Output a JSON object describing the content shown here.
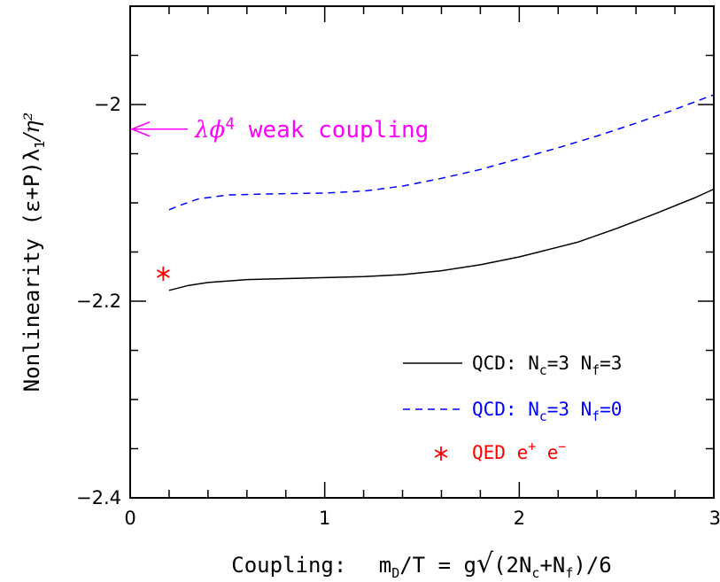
{
  "chart_data": {
    "type": "line",
    "xlabel": {
      "prefix": "Coupling:",
      "lhs_m": "m",
      "lhs_sub": "D",
      "lhs_rest": "/T = g",
      "sqrt_sign": "√",
      "args": [
        "(2N",
        "c",
        "+N",
        "f",
        ")/6"
      ]
    },
    "ylabel": {
      "prefix": "Nonlinearity (ε+P)λ",
      "sub": "1",
      "suffix": "/η²"
    },
    "xlim": [
      0,
      3
    ],
    "ylim": [
      -2.4,
      -1.9
    ],
    "x_ticks": [
      {
        "value": 0,
        "label": "0"
      },
      {
        "value": 1,
        "label": "1"
      },
      {
        "value": 2,
        "label": "2"
      },
      {
        "value": 3,
        "label": "3"
      }
    ],
    "y_ticks": [
      {
        "value": -2.4,
        "label": "−2.4"
      },
      {
        "value": -2.2,
        "label": "−2.2"
      },
      {
        "value": -2.0,
        "label": "−2"
      }
    ],
    "grid": false,
    "legend_position": "bottom-right",
    "series": [
      {
        "name": "QCD: N_c=3 N_f=3",
        "style": "solid",
        "color": "#000000",
        "x": [
          0.2,
          0.3,
          0.4,
          0.6,
          0.8,
          1.0,
          1.2,
          1.4,
          1.6,
          1.8,
          2.0,
          2.1,
          2.3,
          2.5,
          2.7,
          2.9,
          3.0
        ],
        "y": [
          -2.189,
          -2.184,
          -2.181,
          -2.178,
          -2.177,
          -2.176,
          -2.175,
          -2.173,
          -2.169,
          -2.163,
          -2.155,
          -2.15,
          -2.14,
          -2.126,
          -2.111,
          -2.095,
          -2.086
        ]
      },
      {
        "name": "QCD: N_c=3 N_f=0",
        "style": "dashed",
        "color": "#0000ff",
        "x": [
          0.2,
          0.25,
          0.35,
          0.5,
          0.7,
          1.0,
          1.2,
          1.4,
          1.6,
          1.8,
          2.0,
          2.2,
          2.4,
          2.6,
          2.8,
          3.0
        ],
        "y": [
          -2.107,
          -2.103,
          -2.096,
          -2.092,
          -2.091,
          -2.09,
          -2.088,
          -2.083,
          -2.075,
          -2.066,
          -2.055,
          -2.044,
          -2.032,
          -2.019,
          -2.005,
          -1.99
        ]
      },
      {
        "name": "QED e⁺ e⁻",
        "style": "marker",
        "marker": "asterisk",
        "color": "#ff0000",
        "x": [
          0.17
        ],
        "y": [
          -2.172
        ]
      }
    ],
    "legend_entries": [
      {
        "style": "solid",
        "color": "#000000",
        "parts": [
          {
            "t": "QCD: N"
          },
          {
            "t": "c",
            "sub": true
          },
          {
            "t": "=3 N"
          },
          {
            "t": "f",
            "sub": true
          },
          {
            "t": "=3"
          }
        ]
      },
      {
        "style": "dashed",
        "color": "#0000ff",
        "parts": [
          {
            "t": "QCD: N"
          },
          {
            "t": "c",
            "sub": true
          },
          {
            "t": "=3 N"
          },
          {
            "t": "f",
            "sub": true
          },
          {
            "t": "=0"
          }
        ]
      },
      {
        "style": "marker",
        "color": "#ff0000",
        "parts": [
          {
            "t": "QED e"
          },
          {
            "t": "+",
            "sup": true
          },
          {
            "t": " e"
          },
          {
            "t": "−",
            "sup": true
          }
        ]
      }
    ],
    "annotations": [
      {
        "type": "arrow",
        "direction": "left",
        "color": "#ff00ff",
        "x": 0.0,
        "y": -2.025,
        "text_parts": [
          {
            "t": "λϕ",
            "math": true
          },
          {
            "t": "4",
            "sup": true
          },
          {
            "t": " weak coupling"
          }
        ]
      }
    ]
  }
}
